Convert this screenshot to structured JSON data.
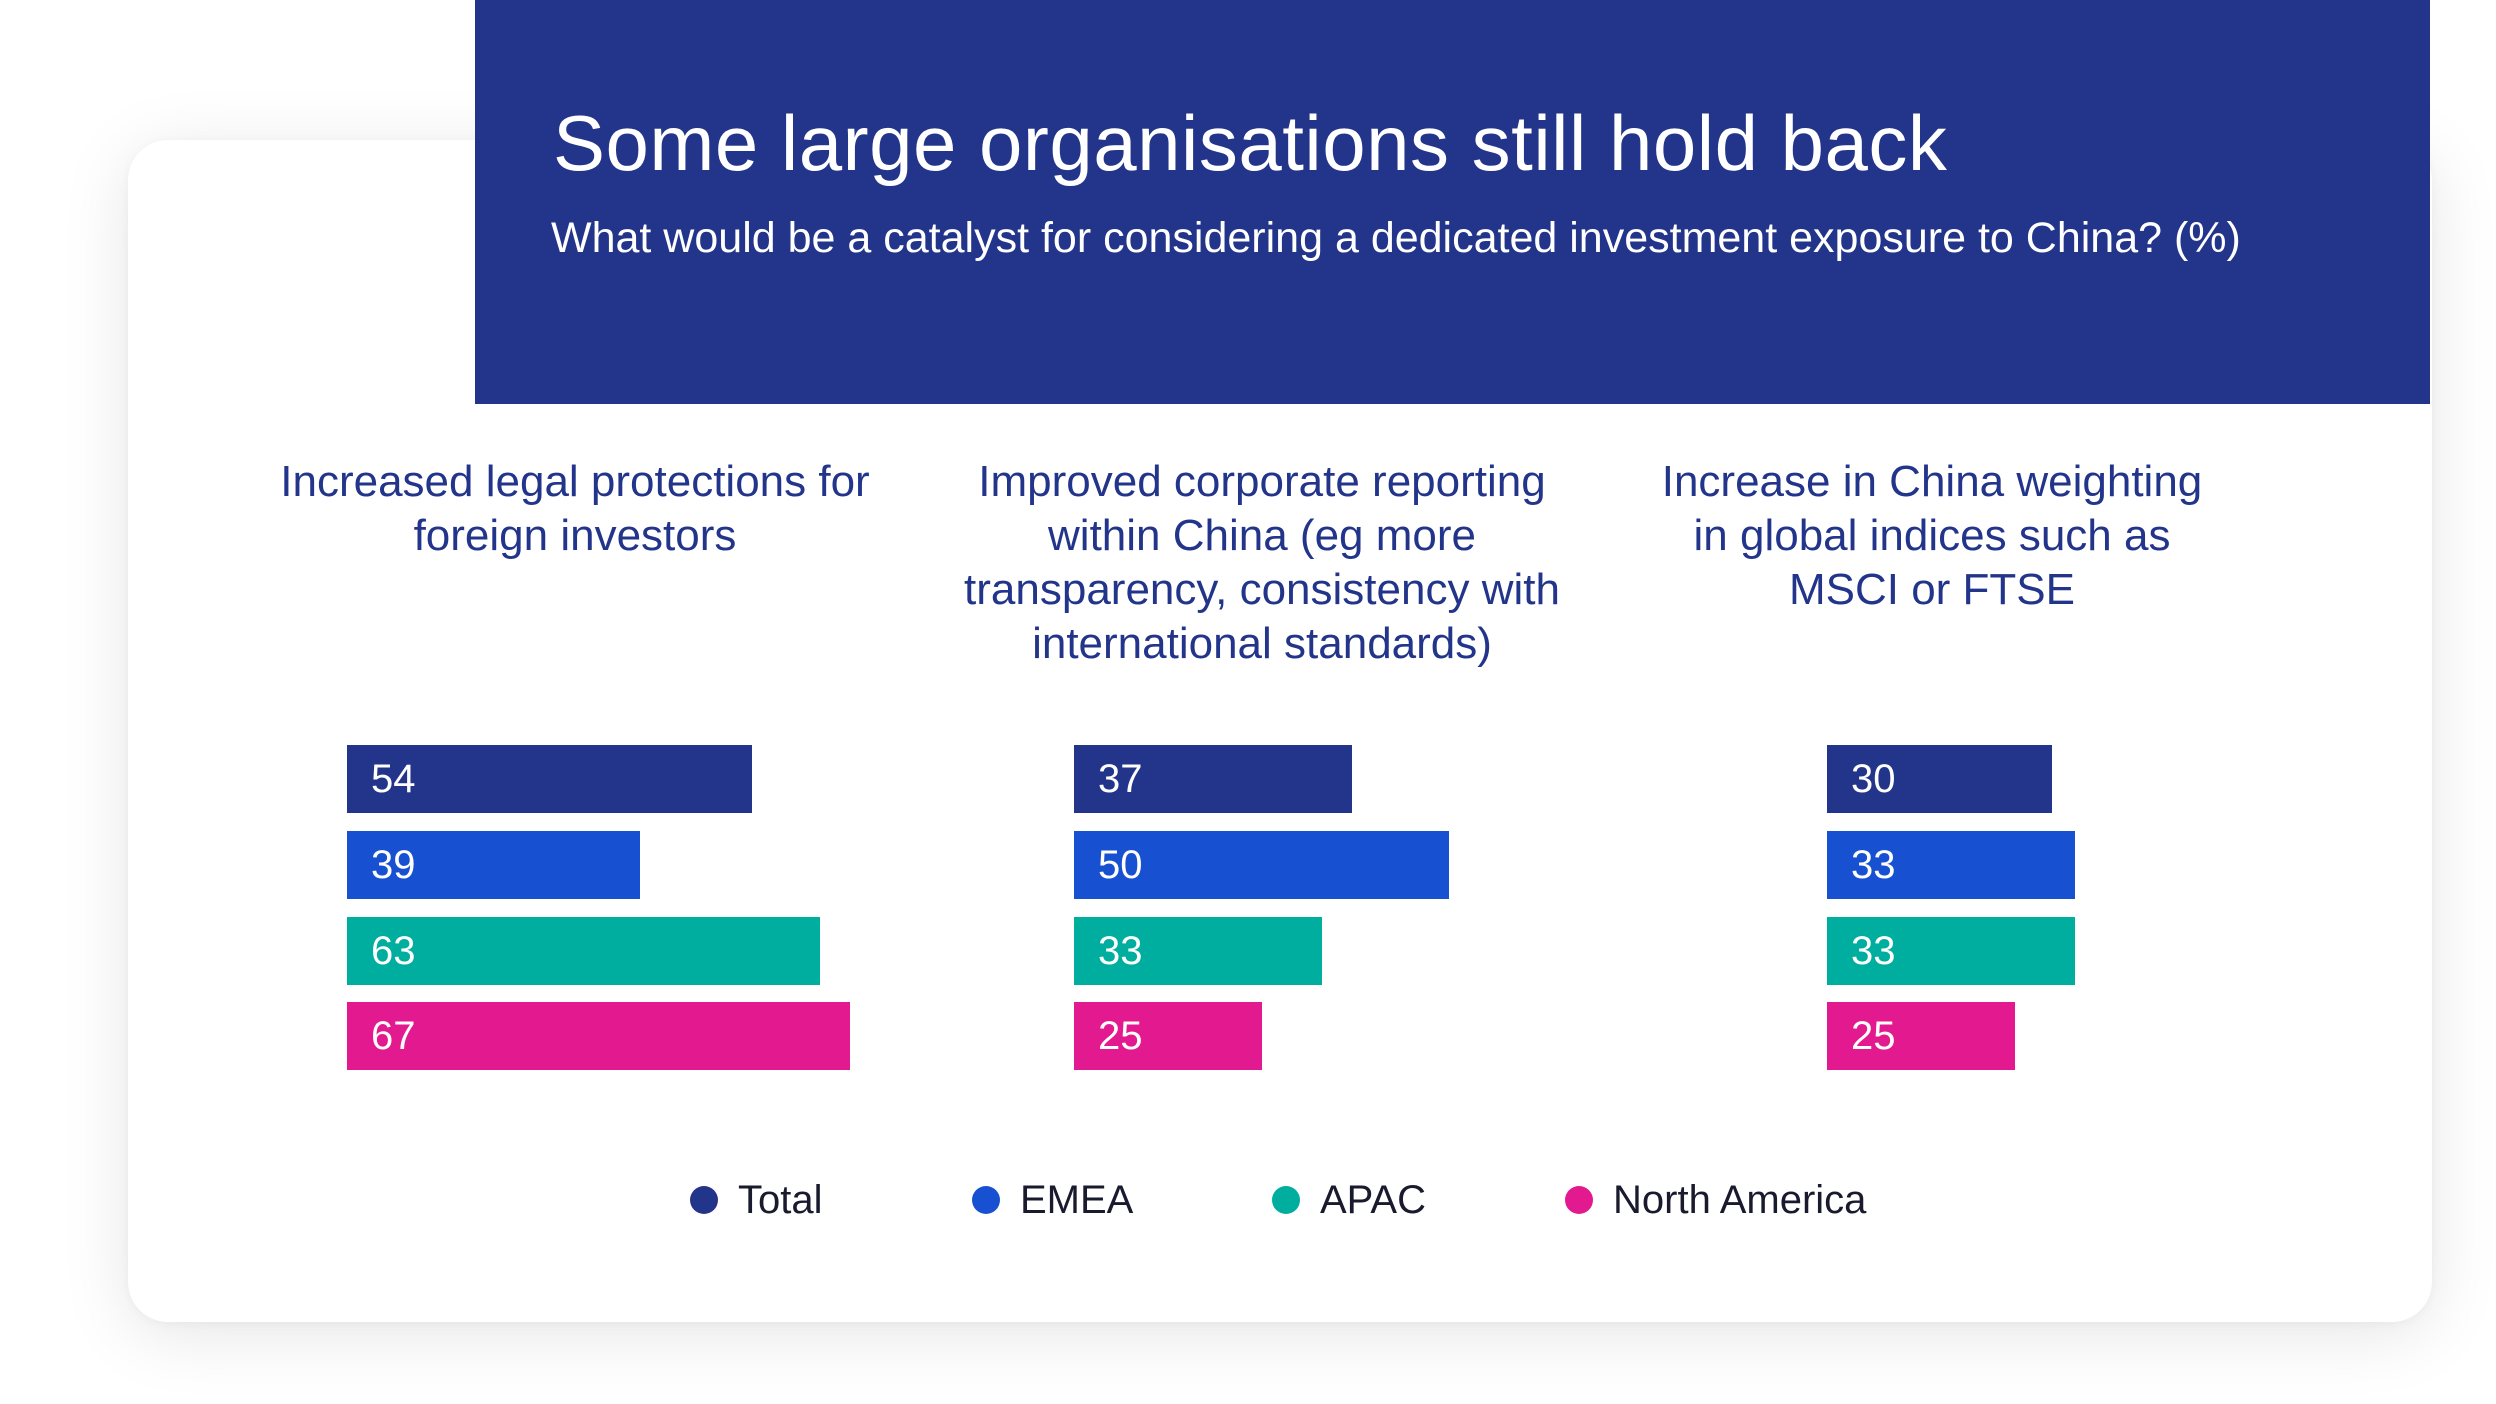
{
  "header": {
    "title": "Some large organisations still hold back",
    "subtitle": "What would be a catalyst for considering a dedicated investment exposure to China? (%)"
  },
  "colors": {
    "banner": "#23358a",
    "Total": "#23358a",
    "EMEA": "#1751d1",
    "APAC": "#00ae9f",
    "North America": "#e2198f"
  },
  "chart_data": {
    "type": "bar",
    "orientation": "horizontal",
    "categories": [
      "Increased legal protections for foreign investors",
      "Improved corporate reporting within China (eg more transparency, consistency with international standards)",
      "Increase in China weighting in global indices such as MSCI or FTSE"
    ],
    "series": [
      {
        "name": "Total",
        "values": [
          54,
          37,
          30
        ]
      },
      {
        "name": "EMEA",
        "values": [
          39,
          50,
          33
        ]
      },
      {
        "name": "APAC",
        "values": [
          63,
          33,
          33
        ]
      },
      {
        "name": "North America",
        "values": [
          67,
          25,
          25
        ]
      }
    ],
    "legend_position": "bottom",
    "grid": false
  }
}
